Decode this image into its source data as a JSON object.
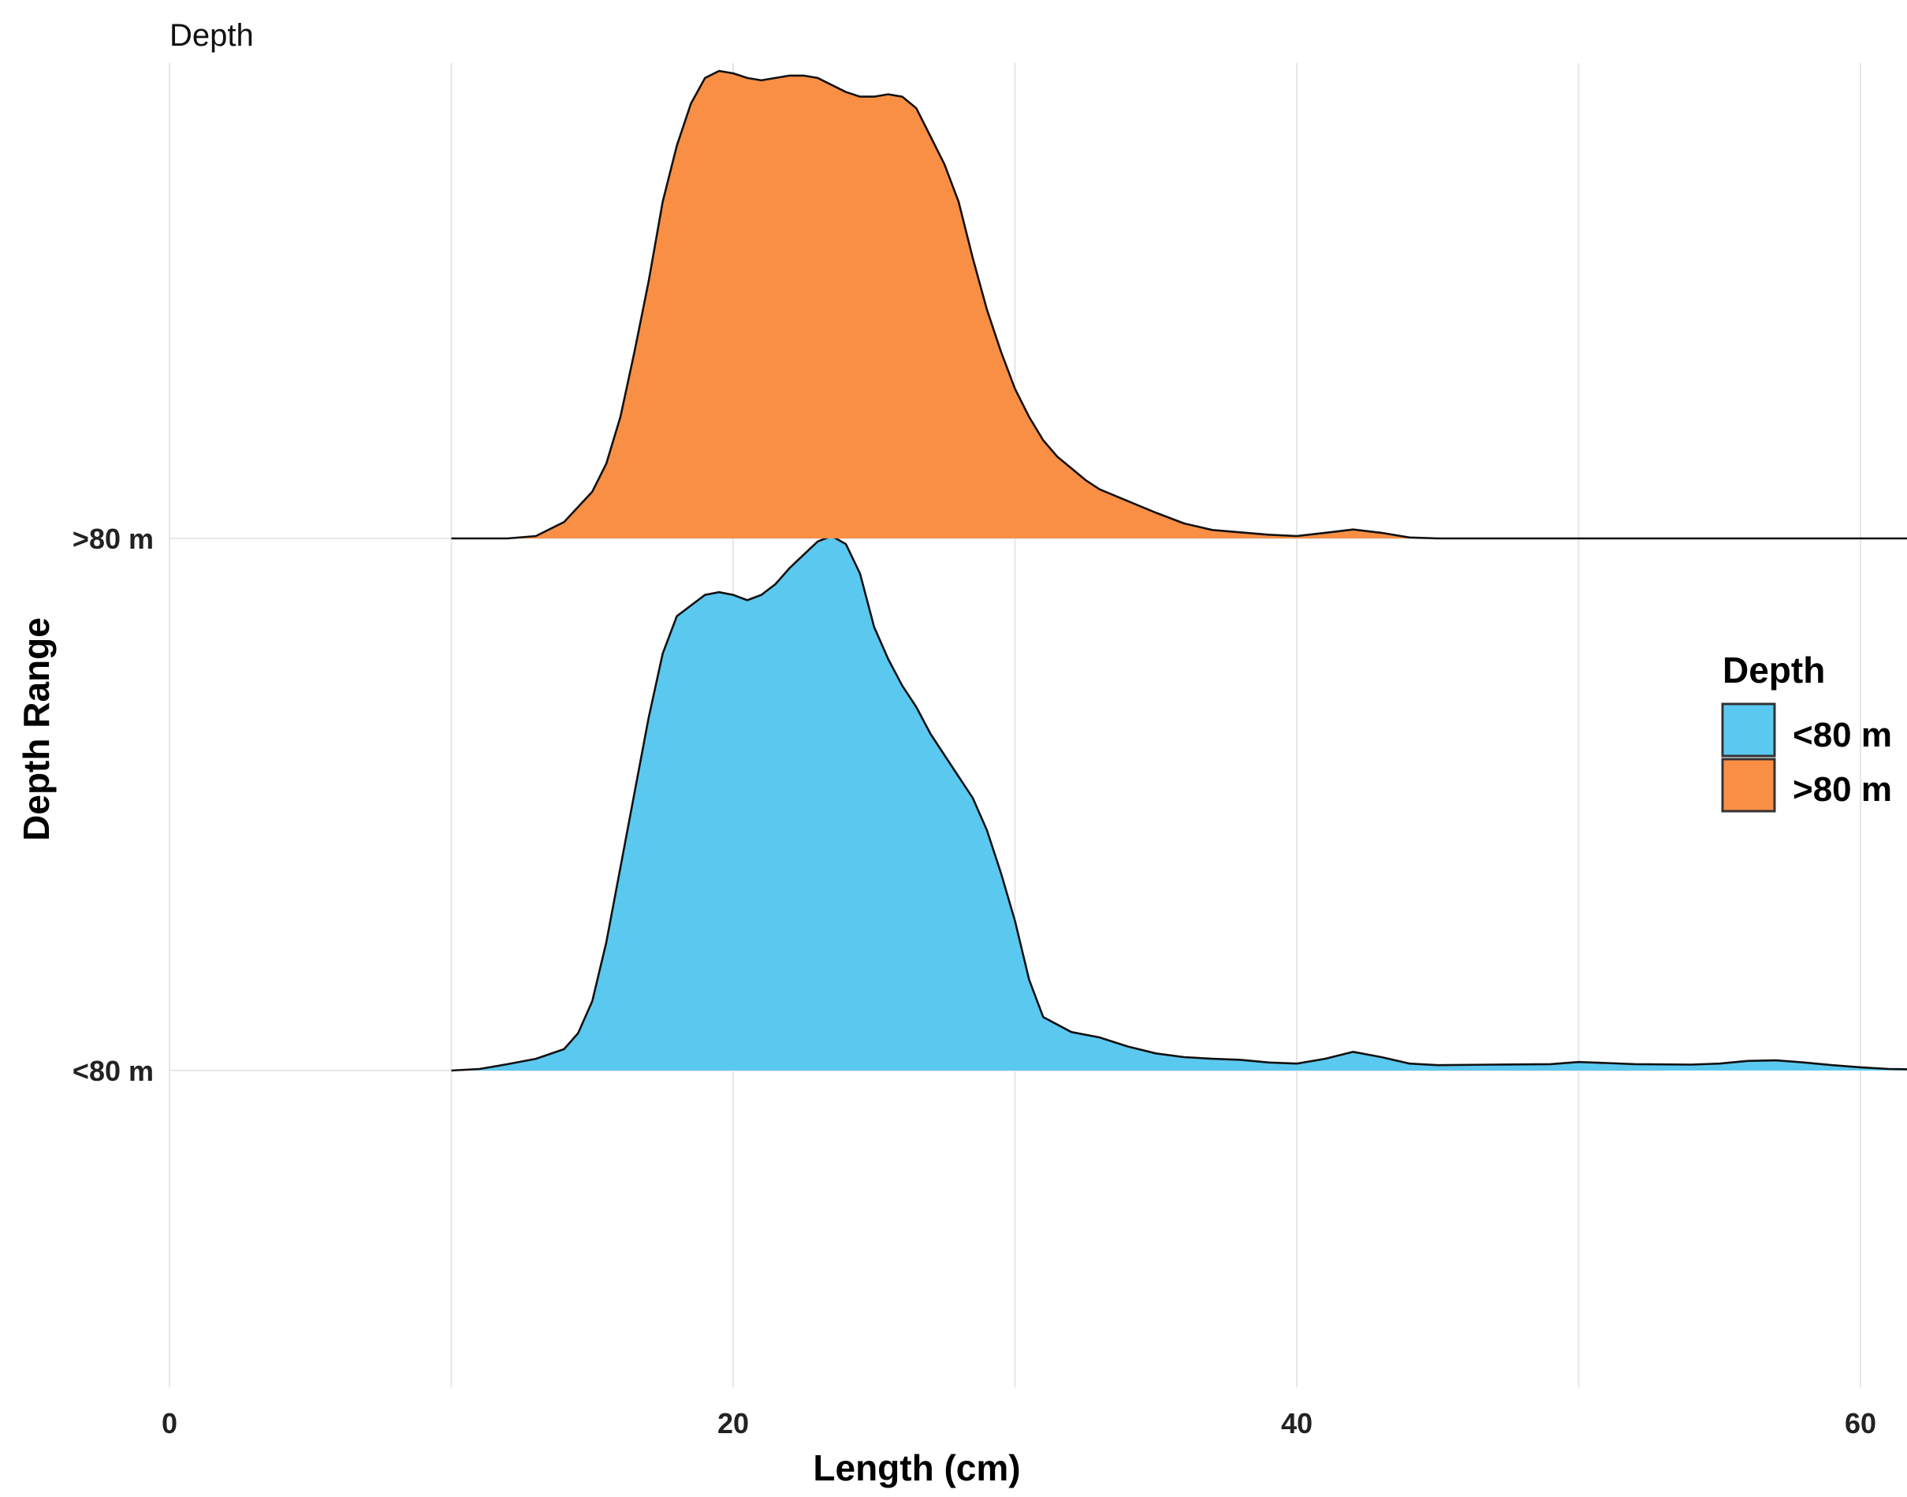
{
  "chart_data": {
    "type": "area",
    "title": "Depth",
    "xlabel": "Length (cm)",
    "ylabel": "Depth Range",
    "xlim": [
      0,
      70
    ],
    "x_ticks": [
      0,
      20,
      40,
      60
    ],
    "categories": [
      "<80 m",
      ">80 m"
    ],
    "grid": true,
    "legend": {
      "title": "Depth",
      "position": "right",
      "entries": [
        {
          "label": "<80 m",
          "color": "#5bc8ef"
        },
        {
          "label": ">80 m",
          "color": "#f98f45"
        }
      ]
    },
    "series": [
      {
        "name": "<80 m",
        "color": "#5bc8ef",
        "points": [
          [
            10,
            0.0
          ],
          [
            11,
            0.003
          ],
          [
            12,
            0.012
          ],
          [
            13,
            0.022
          ],
          [
            14,
            0.04
          ],
          [
            14.5,
            0.07
          ],
          [
            15,
            0.13
          ],
          [
            15.5,
            0.24
          ],
          [
            16,
            0.38
          ],
          [
            16.5,
            0.52
          ],
          [
            17,
            0.66
          ],
          [
            17.5,
            0.78
          ],
          [
            18,
            0.85
          ],
          [
            18.5,
            0.87
          ],
          [
            19,
            0.89
          ],
          [
            19.5,
            0.895
          ],
          [
            20,
            0.89
          ],
          [
            20.5,
            0.88
          ],
          [
            21,
            0.89
          ],
          [
            21.5,
            0.91
          ],
          [
            22,
            0.94
          ],
          [
            22.5,
            0.965
          ],
          [
            23,
            0.99
          ],
          [
            23.5,
            1.0
          ],
          [
            24,
            0.985
          ],
          [
            24.5,
            0.93
          ],
          [
            25,
            0.83
          ],
          [
            25.5,
            0.77
          ],
          [
            26,
            0.72
          ],
          [
            26.5,
            0.68
          ],
          [
            27,
            0.63
          ],
          [
            27.5,
            0.59
          ],
          [
            28,
            0.55
          ],
          [
            28.5,
            0.51
          ],
          [
            29,
            0.45
          ],
          [
            29.5,
            0.37
          ],
          [
            30,
            0.28
          ],
          [
            30.5,
            0.17
          ],
          [
            31,
            0.1
          ],
          [
            32,
            0.072
          ],
          [
            33,
            0.062
          ],
          [
            34,
            0.045
          ],
          [
            35,
            0.032
          ],
          [
            36,
            0.025
          ],
          [
            37,
            0.022
          ],
          [
            38,
            0.02
          ],
          [
            39,
            0.015
          ],
          [
            40,
            0.013
          ],
          [
            41,
            0.022
          ],
          [
            42,
            0.035
          ],
          [
            43,
            0.025
          ],
          [
            44,
            0.013
          ],
          [
            45,
            0.01
          ],
          [
            47,
            0.011
          ],
          [
            49,
            0.012
          ],
          [
            50,
            0.016
          ],
          [
            51,
            0.014
          ],
          [
            52,
            0.012
          ],
          [
            54,
            0.011
          ],
          [
            55,
            0.013
          ],
          [
            56,
            0.018
          ],
          [
            57,
            0.019
          ],
          [
            58,
            0.015
          ],
          [
            59,
            0.01
          ],
          [
            60,
            0.006
          ],
          [
            61,
            0.003
          ],
          [
            62,
            0.002
          ],
          [
            64,
            0.002
          ],
          [
            65,
            0.003
          ],
          [
            66,
            0.006
          ],
          [
            68,
            0.006
          ],
          [
            70,
            0.005
          ]
        ]
      },
      {
        "name": ">80 m",
        "color": "#f98f45",
        "points": [
          [
            10,
            0.0
          ],
          [
            12,
            0.0
          ],
          [
            13,
            0.005
          ],
          [
            14,
            0.035
          ],
          [
            15,
            0.1
          ],
          [
            15.5,
            0.16
          ],
          [
            16,
            0.26
          ],
          [
            16.5,
            0.4
          ],
          [
            17,
            0.55
          ],
          [
            17.5,
            0.72
          ],
          [
            18,
            0.84
          ],
          [
            18.5,
            0.93
          ],
          [
            19,
            0.985
          ],
          [
            19.5,
            1.0
          ],
          [
            20,
            0.995
          ],
          [
            20.5,
            0.985
          ],
          [
            21,
            0.98
          ],
          [
            21.5,
            0.985
          ],
          [
            22,
            0.99
          ],
          [
            22.5,
            0.99
          ],
          [
            23,
            0.985
          ],
          [
            23.5,
            0.97
          ],
          [
            24,
            0.955
          ],
          [
            24.5,
            0.945
          ],
          [
            25,
            0.945
          ],
          [
            25.5,
            0.95
          ],
          [
            26,
            0.945
          ],
          [
            26.5,
            0.92
          ],
          [
            27,
            0.86
          ],
          [
            27.5,
            0.8
          ],
          [
            28,
            0.72
          ],
          [
            28.5,
            0.6
          ],
          [
            29,
            0.49
          ],
          [
            29.5,
            0.4
          ],
          [
            30,
            0.32
          ],
          [
            30.5,
            0.26
          ],
          [
            31,
            0.21
          ],
          [
            31.5,
            0.175
          ],
          [
            32,
            0.15
          ],
          [
            32.5,
            0.125
          ],
          [
            33,
            0.105
          ],
          [
            34,
            0.08
          ],
          [
            35,
            0.055
          ],
          [
            36,
            0.032
          ],
          [
            37,
            0.018
          ],
          [
            38,
            0.013
          ],
          [
            39,
            0.008
          ],
          [
            40,
            0.005
          ],
          [
            41,
            0.012
          ],
          [
            42,
            0.019
          ],
          [
            43,
            0.012
          ],
          [
            44,
            0.002
          ],
          [
            45,
            0.0
          ],
          [
            50,
            0.0
          ],
          [
            60,
            0.0
          ],
          [
            70,
            0.0
          ]
        ]
      }
    ]
  }
}
